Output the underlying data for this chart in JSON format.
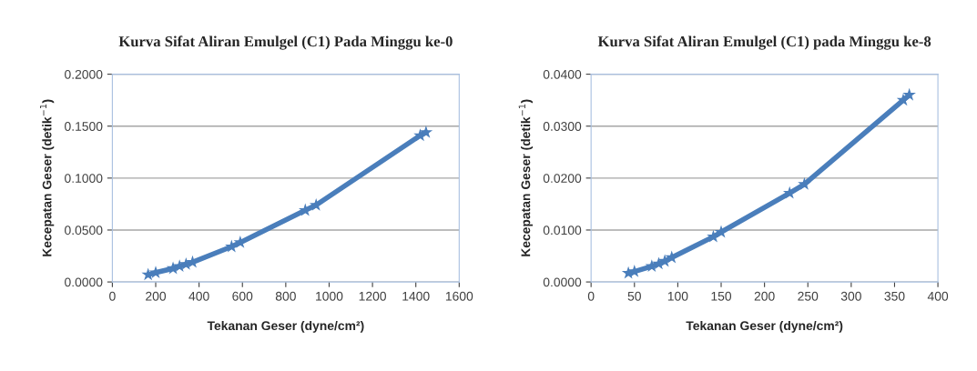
{
  "chart_data": [
    {
      "type": "line",
      "title": "Kurva Sifat Aliran Emulgel (C1) Pada Minggu ke-0",
      "xlabel": "Tekanan Geser (dyne/cm²)",
      "ylabel": "Kecepatan Geser (detik$^{−1}$)",
      "xlim": [
        0,
        1600
      ],
      "xticks": [
        0,
        200,
        400,
        600,
        800,
        1000,
        1200,
        1400,
        1600
      ],
      "ylim": [
        0,
        0.2
      ],
      "yticks": [
        {
          "value": 0,
          "label": "0.0000"
        },
        {
          "value": 0.05,
          "label": "0.0500"
        },
        {
          "value": 0.1,
          "label": "0.1000"
        },
        {
          "value": 0.15,
          "label": "0.1500"
        },
        {
          "value": 0.2,
          "label": "0.2000"
        }
      ],
      "grid": "y",
      "marker": "star",
      "line_style": "solid",
      "series": [
        {
          "color": "#4a7ebb",
          "x": [
            165,
            200,
            280,
            310,
            340,
            370,
            550,
            590,
            890,
            940,
            1420,
            1447
          ],
          "values": [
            0.007,
            0.009,
            0.013,
            0.015,
            0.017,
            0.019,
            0.034,
            0.038,
            0.069,
            0.074,
            0.141,
            0.144
          ]
        }
      ]
    },
    {
      "type": "line",
      "title": "Kurva Sifat Aliran Emulgel (C1) pada Minggu ke-8",
      "xlabel": "Tekanan Geser (dyne/cm²)",
      "ylabel": "Kecepatan Geser (detik$^{−1}$)",
      "xlim": [
        0,
        400
      ],
      "xticks": [
        0,
        50,
        100,
        150,
        200,
        250,
        300,
        350,
        400
      ],
      "ylim": [
        0,
        0.04
      ],
      "yticks": [
        {
          "value": 0,
          "label": "0.0000"
        },
        {
          "value": 0.01,
          "label": "0.0100"
        },
        {
          "value": 0.02,
          "label": "0.0200"
        },
        {
          "value": 0.03,
          "label": "0.0300"
        },
        {
          "value": 0.04,
          "label": "0.0400"
        }
      ],
      "grid": "y",
      "marker": "star",
      "line_style": "solid",
      "series": [
        {
          "color": "#4a7ebb",
          "x": [
            43,
            50,
            70,
            78,
            85,
            93,
            141,
            150,
            229,
            246,
            360,
            367
          ],
          "values": [
            0.0017,
            0.002,
            0.003,
            0.0035,
            0.004,
            0.0047,
            0.0087,
            0.0096,
            0.0171,
            0.0188,
            0.035,
            0.036
          ]
        }
      ]
    }
  ]
}
